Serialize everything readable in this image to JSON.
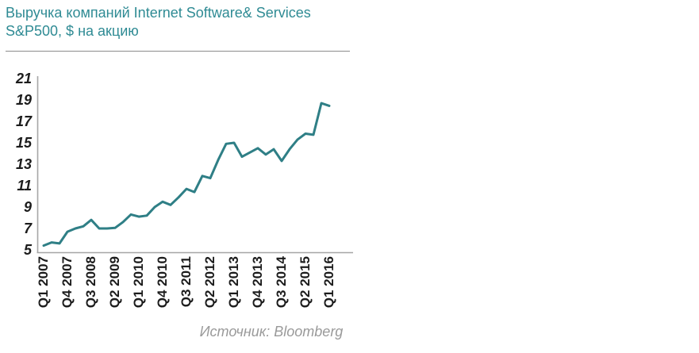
{
  "header": {
    "title_line1": "Выручка компаний Internet Software& Services",
    "title_line2": "S&P500, $ на акцию"
  },
  "source": {
    "label": "Источник: Bloomberg"
  },
  "colors": {
    "title_text": "#2f8b94",
    "line": "#2f7f86",
    "axis": "#a6a6a6",
    "tick_text": "#1c1c1c",
    "source_text": "#9a9a9a",
    "divider": "#8c8c8c",
    "background": "#ffffff"
  },
  "chart_data": {
    "type": "line",
    "title": "Выручка компаний Internet Software& Services S&P500, $ на акцию",
    "xlabel": "",
    "ylabel": "$ на акцию",
    "x": [
      "Q1 2007",
      "Q2 2007",
      "Q3 2007",
      "Q4 2007",
      "Q1 2008",
      "Q2 2008",
      "Q3 2008",
      "Q4 2008",
      "Q1 2009",
      "Q2 2009",
      "Q3 2009",
      "Q4 2009",
      "Q1 2010",
      "Q2 2010",
      "Q3 2010",
      "Q4 2010",
      "Q1 2011",
      "Q2 2011",
      "Q3 2011",
      "Q4 2011",
      "Q1 2012",
      "Q2 2012",
      "Q3 2012",
      "Q4 2012",
      "Q1 2013",
      "Q2 2013",
      "Q3 2013",
      "Q4 2013",
      "Q1 2014",
      "Q2 2014",
      "Q3 2014",
      "Q4 2014",
      "Q1 2015",
      "Q2 2015",
      "Q3 2015",
      "Q4 2015",
      "Q1 2016"
    ],
    "values": [
      5.4,
      5.7,
      5.6,
      6.7,
      7.0,
      7.2,
      7.8,
      7.0,
      7.0,
      7.05,
      7.6,
      8.3,
      8.1,
      8.2,
      9.0,
      9.5,
      9.2,
      9.9,
      10.7,
      10.4,
      11.9,
      11.7,
      13.4,
      14.9,
      15.0,
      13.7,
      14.1,
      14.5,
      13.9,
      14.4,
      13.3,
      14.4,
      15.3,
      15.85,
      15.75,
      18.7,
      18.45
    ],
    "x_tick_labels": [
      "Q1 2007",
      "Q4 2007",
      "Q3 2008",
      "Q2 2009",
      "Q1 2010",
      "Q4 2010",
      "Q3 2011",
      "Q2 2012",
      "Q1 2013",
      "Q4 2013",
      "Q3 2014",
      "Q2 2015",
      "Q1 2016"
    ],
    "x_tick_step": 3,
    "y_ticks": [
      5,
      7,
      9,
      11,
      13,
      15,
      17,
      19,
      21
    ],
    "ylim": [
      5,
      21
    ],
    "grid": false,
    "legend": "none",
    "line_color": "#2f7f86"
  }
}
